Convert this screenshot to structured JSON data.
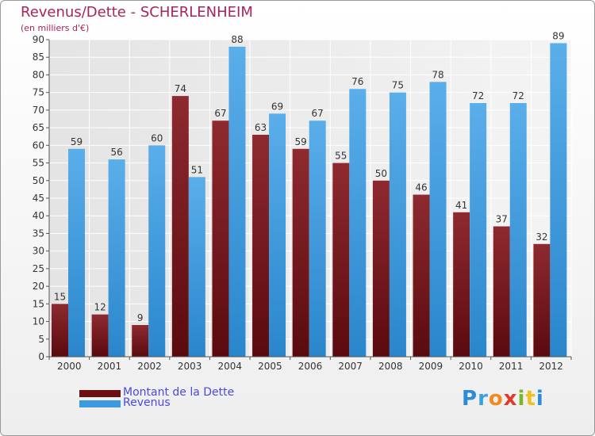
{
  "title": "Revenus/Dette - SCHERLENHEIM",
  "subtitle": "(en milliers d'€)",
  "logo_text": "Proxiti",
  "colors": {
    "title": "#a8245a",
    "legend_text": "#4a4ae0",
    "dette": "#7b1f22",
    "revenus": "#4aa3e6"
  },
  "legend": [
    {
      "label": "Montant de la Dette",
      "color": "#6b0f14"
    },
    {
      "label": "Revenus",
      "color": "#3b9be0"
    }
  ],
  "chart_data": {
    "type": "bar",
    "categories": [
      "2000",
      "2001",
      "2002",
      "2003",
      "2004",
      "2005",
      "2006",
      "2007",
      "2008",
      "2009",
      "2010",
      "2011",
      "2012"
    ],
    "series": [
      {
        "name": "Montant de la Dette",
        "values": [
          15,
          12,
          9,
          74,
          67,
          63,
          59,
          55,
          50,
          46,
          41,
          37,
          32
        ]
      },
      {
        "name": "Revenus",
        "values": [
          59,
          56,
          60,
          51,
          88,
          69,
          67,
          76,
          75,
          78,
          72,
          72,
          89
        ]
      }
    ],
    "title": "Revenus/Dette - SCHERLENHEIM",
    "subtitle": "(en milliers d'€)",
    "ylim": [
      0,
      90
    ],
    "yticks": [
      0,
      5,
      10,
      15,
      20,
      25,
      30,
      35,
      40,
      45,
      50,
      55,
      60,
      65,
      70,
      75,
      80,
      85,
      90
    ],
    "grid": true,
    "legend_position": "bottom-left"
  }
}
